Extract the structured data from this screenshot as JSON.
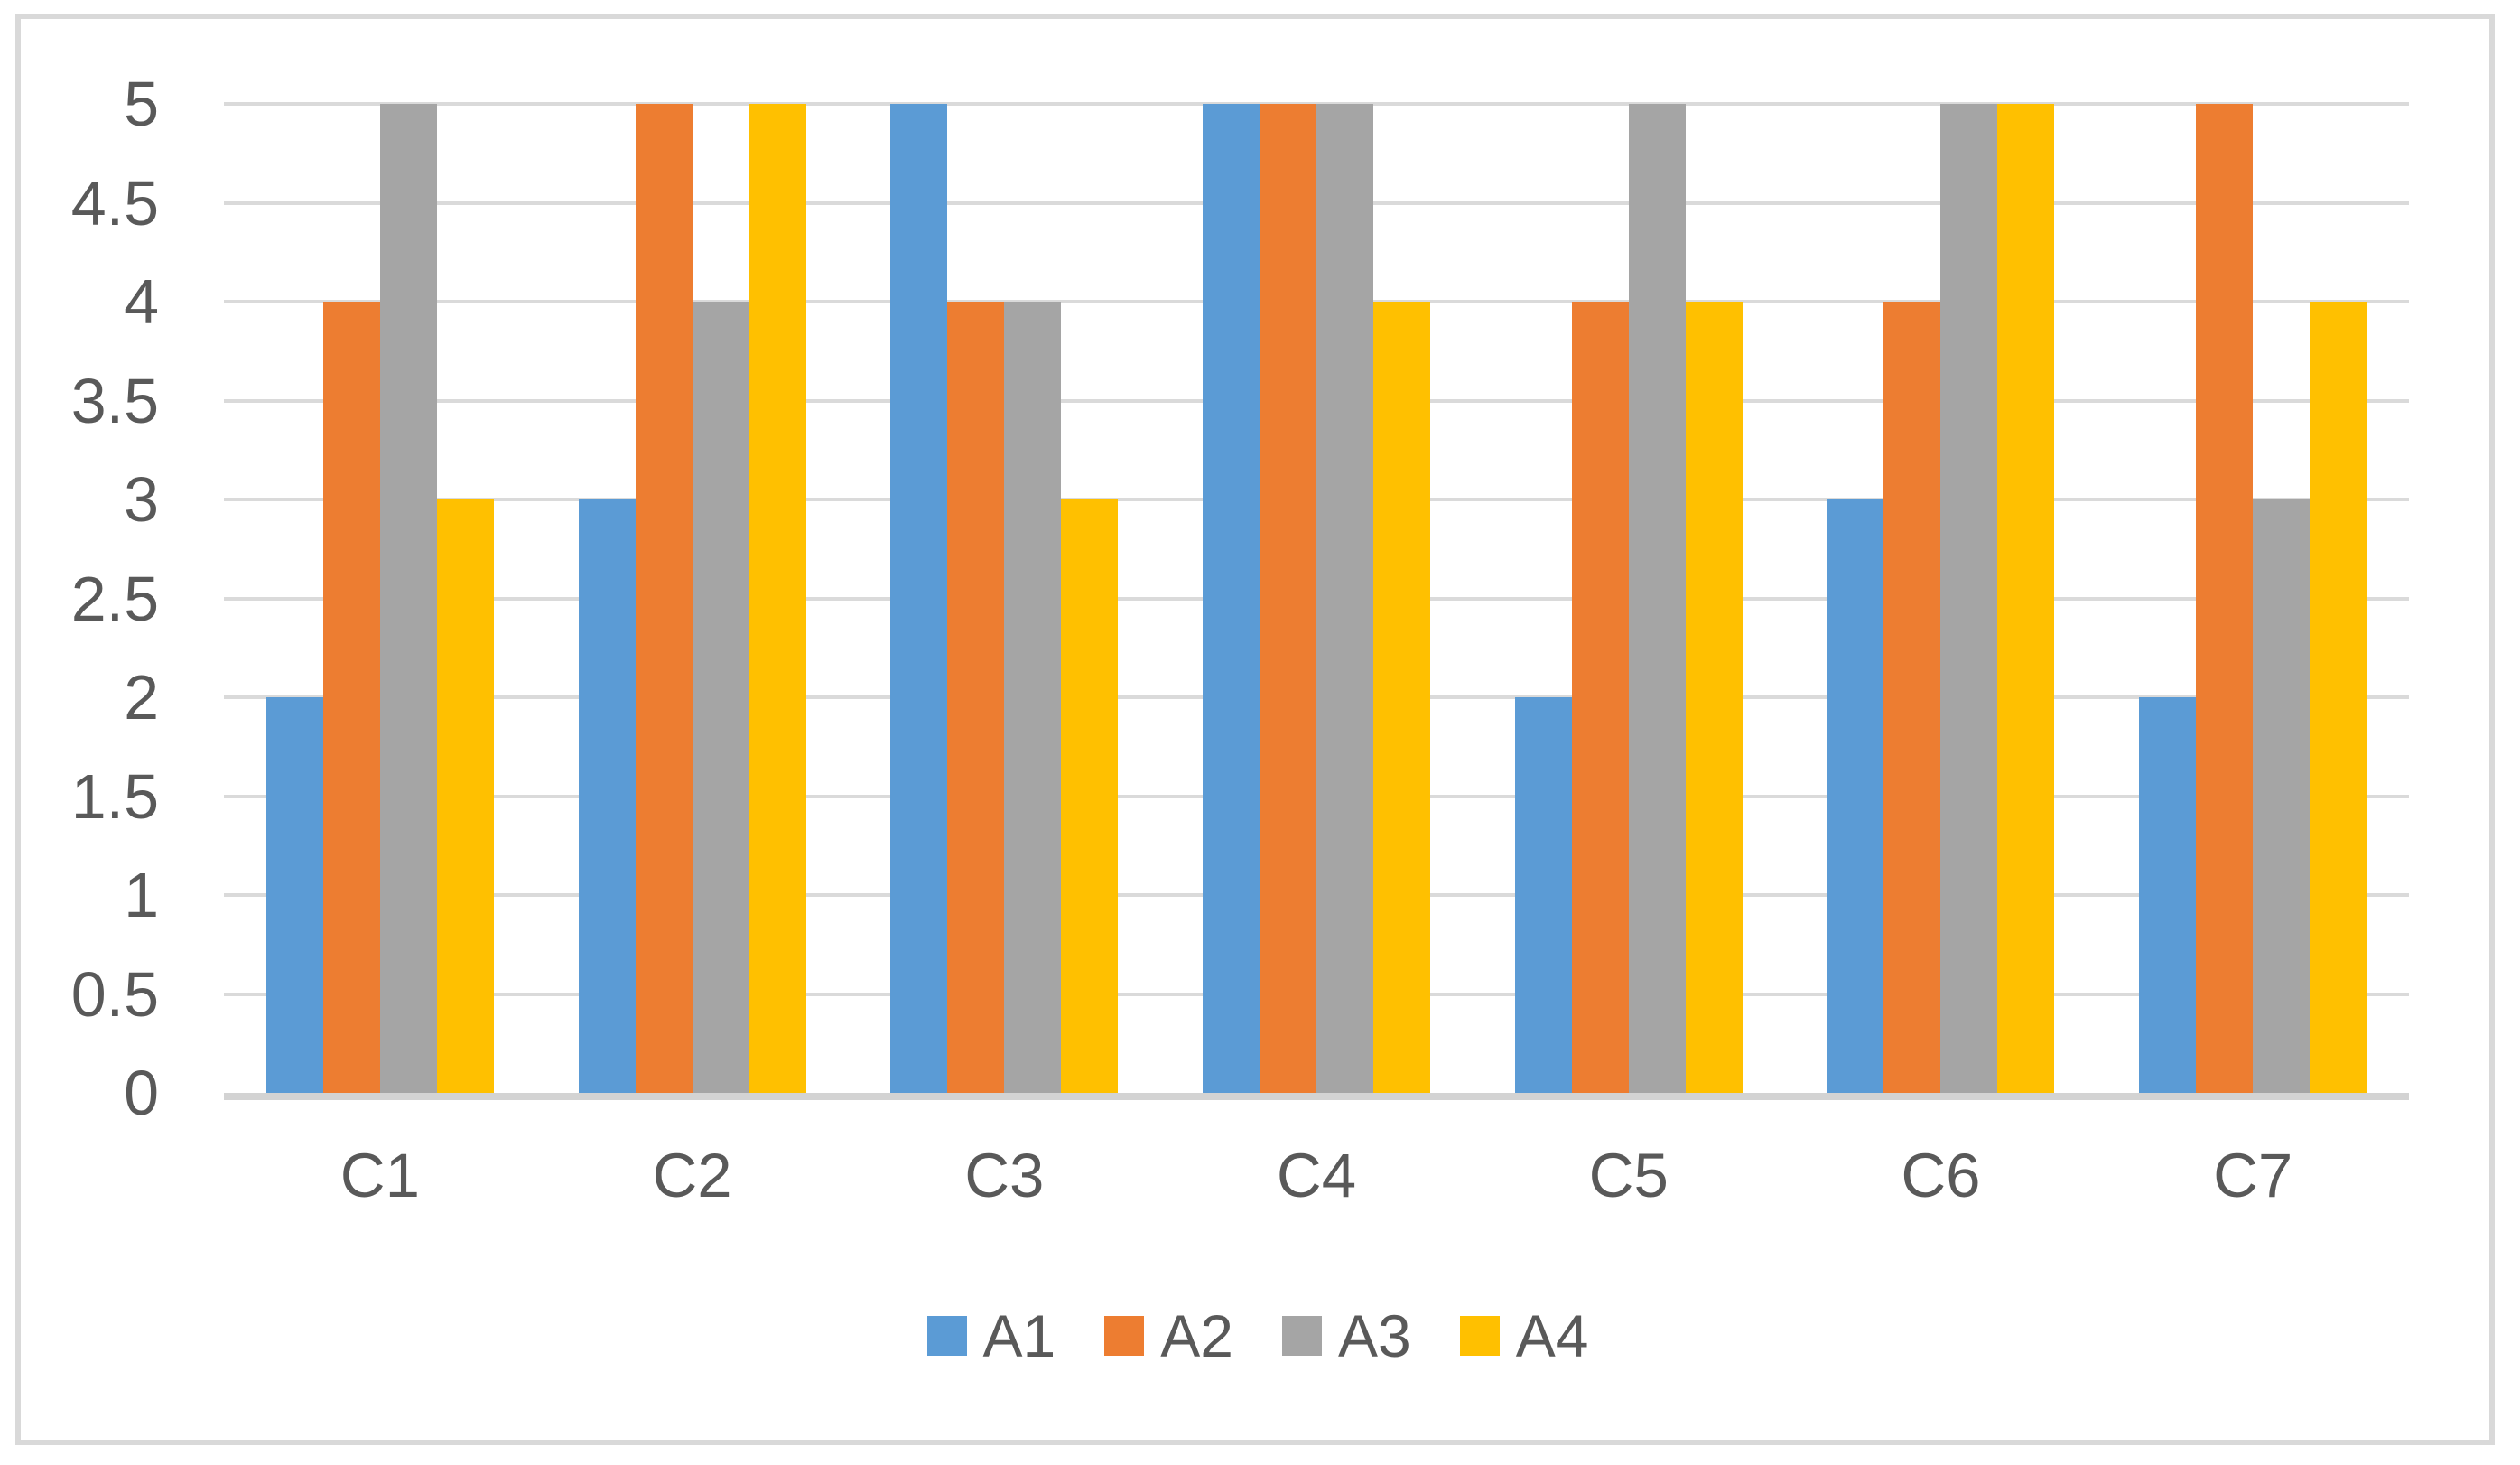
{
  "chart_data": {
    "type": "bar",
    "title": "",
    "xlabel": "",
    "ylabel": "",
    "categories": [
      "C1",
      "C2",
      "C3",
      "C4",
      "C5",
      "C6",
      "C7"
    ],
    "series": [
      {
        "name": "A1",
        "color": "#5B9BD5",
        "values": [
          2,
          3,
          5,
          5,
          2,
          3,
          2
        ]
      },
      {
        "name": "A2",
        "color": "#ED7D31",
        "values": [
          4,
          5,
          4,
          5,
          4,
          4,
          5
        ]
      },
      {
        "name": "A3",
        "color": "#A5A5A5",
        "values": [
          5,
          4,
          4,
          5,
          5,
          5,
          3
        ]
      },
      {
        "name": "A4",
        "color": "#FFC000",
        "values": [
          3,
          5,
          3,
          4,
          4,
          5,
          4
        ]
      }
    ],
    "ylim": [
      0,
      5
    ],
    "ytick_step": 0.5,
    "ytick_labels": [
      "5",
      "4.5",
      "4",
      "3.5",
      "3",
      "2.5",
      "2",
      "1.5",
      "1",
      "0.5",
      "0"
    ],
    "grid": true,
    "legend_position": "bottom-center"
  },
  "colors": {
    "background": "#FFFFFF",
    "frame_border": "#D9D9D9",
    "gridline": "#DADADA",
    "axis_line": "#D3D3D3",
    "text": "#595959"
  }
}
